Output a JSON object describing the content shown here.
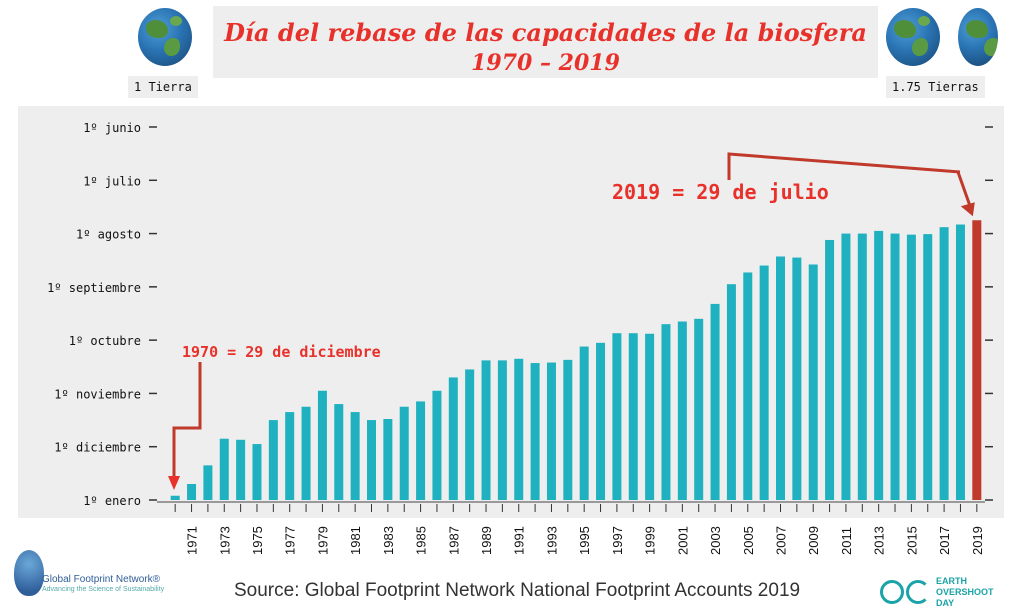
{
  "header": {
    "title_line1": "Día del rebase de las capacidades de la biosfera",
    "title_line2": "1970 – 2019",
    "left_globe_label": "1 Tierra",
    "right_globe_label": "1.75 Tierras"
  },
  "annotations": {
    "top": "2019 = 29 de julio",
    "bottom": "1970 = 29 de diciembre"
  },
  "footer": {
    "source": "Source: Global Footprint Network National Footprint Accounts 2019",
    "gfn_name": "Global Footprint Network®",
    "gfn_tagline": "Advancing the Science of Sustainability",
    "eod_line1": "EARTH",
    "eod_line2": "OVERSHOOT",
    "eod_line3": "DAY"
  },
  "colors": {
    "bar": "#1fb1bf",
    "highlight_bar": "#c0392b",
    "accent": "#e8312a"
  },
  "chart_data": {
    "type": "bar",
    "title": "Día del rebase de las capacidades de la biosfera 1970 – 2019",
    "y_axis": {
      "description": "date of overshoot day (days from 31 Dec, higher = earlier)",
      "ticks": [
        "1º enero",
        "1º diciembre",
        "1º noviembre",
        "1º octubre",
        "1º septiembre",
        "1º agosto",
        "1º julio",
        "1º junio"
      ],
      "range": [
        0,
        7
      ]
    },
    "x_tick_labels": [
      "1971",
      "1973",
      "1975",
      "1977",
      "1979",
      "1981",
      "1983",
      "1985",
      "1987",
      "1989",
      "1991",
      "1993",
      "1995",
      "1997",
      "1999",
      "2001",
      "2003",
      "2005",
      "2007",
      "2009",
      "2011",
      "2013",
      "2015",
      "2017",
      "2019"
    ],
    "categories": [
      "1970",
      "1971",
      "1972",
      "1973",
      "1974",
      "1975",
      "1976",
      "1977",
      "1978",
      "1979",
      "1980",
      "1981",
      "1982",
      "1983",
      "1984",
      "1985",
      "1986",
      "1987",
      "1988",
      "1989",
      "1990",
      "1991",
      "1992",
      "1993",
      "1994",
      "1995",
      "1996",
      "1997",
      "1998",
      "1999",
      "2000",
      "2001",
      "2002",
      "2003",
      "2004",
      "2005",
      "2006",
      "2007",
      "2008",
      "2009",
      "2010",
      "2011",
      "2012",
      "2013",
      "2014",
      "2015",
      "2016",
      "2017",
      "2018",
      "2019"
    ],
    "values": [
      0.08,
      0.3,
      0.65,
      1.15,
      1.13,
      1.05,
      1.5,
      1.65,
      1.75,
      2.05,
      1.8,
      1.65,
      1.5,
      1.52,
      1.75,
      1.85,
      2.05,
      2.3,
      2.45,
      2.62,
      2.62,
      2.65,
      2.57,
      2.58,
      2.63,
      2.88,
      2.95,
      3.13,
      3.13,
      3.12,
      3.3,
      3.35,
      3.4,
      3.68,
      4.05,
      4.27,
      4.4,
      4.57,
      4.55,
      4.42,
      4.88,
      5.0,
      5.0,
      5.05,
      5.0,
      4.98,
      4.99,
      5.12,
      5.17,
      5.25
    ],
    "highlight_index": 49,
    "grid": false
  }
}
